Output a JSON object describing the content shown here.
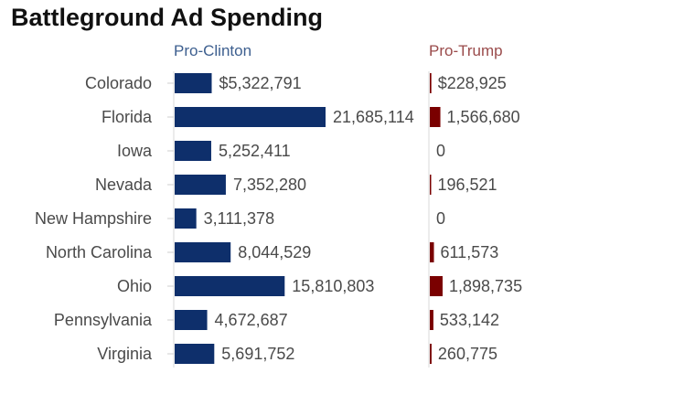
{
  "chart_data": {
    "type": "bar",
    "title": "Battleground Ad Spending",
    "categories": [
      "Colorado",
      "Florida",
      "Iowa",
      "Nevada",
      "New Hampshire",
      "North Carolina",
      "Ohio",
      "Pennsylvania",
      "Virginia"
    ],
    "series": [
      {
        "name": "Pro-Clinton",
        "color": "#0e2f6b",
        "values": [
          5322791,
          21685114,
          5252411,
          7352280,
          3111378,
          8044529,
          15810803,
          4672687,
          5691752
        ],
        "labels": [
          "$5,322,791",
          "21,685,114",
          "5,252,411",
          "7,352,280",
          "3,111,378",
          "8,044,529",
          "15,810,803",
          "4,672,687",
          "5,691,752"
        ]
      },
      {
        "name": "Pro-Trump",
        "color": "#7a0000",
        "values": [
          228925,
          1566680,
          0,
          196521,
          0,
          611573,
          1898735,
          533142,
          260775
        ],
        "labels": [
          "$228,925",
          "1,566,680",
          "0",
          "196,521",
          "0",
          "611,573",
          "1,898,735",
          "533,142",
          "260,775"
        ]
      }
    ],
    "header_colors": [
      "#3d5f8f",
      "#9a4b4b"
    ],
    "grid": false,
    "legend": "top"
  }
}
